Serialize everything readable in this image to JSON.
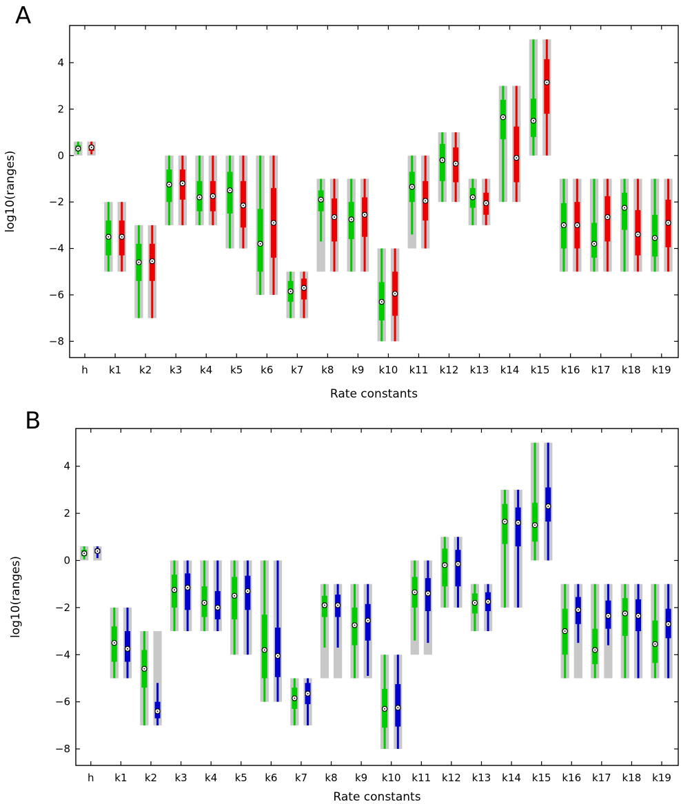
{
  "chart_data": [
    {
      "type": "box",
      "panel_label": "A",
      "xlabel": "Rate constants",
      "ylabel": "log10(ranges)",
      "ylim": [
        -8.7,
        5.6
      ],
      "yticks": [
        -8,
        -6,
        -4,
        -2,
        0,
        2,
        4
      ],
      "categories": [
        "h",
        "k1",
        "k2",
        "k3",
        "k4",
        "k5",
        "k6",
        "k7",
        "k8",
        "k9",
        "k10",
        "k11",
        "k12",
        "k13",
        "k14",
        "k15",
        "k16",
        "k17",
        "k18",
        "k19"
      ],
      "range_color": "#c8c8c8",
      "ranges": [
        [
          0,
          0.6
        ],
        [
          -5,
          -2
        ],
        [
          -7,
          -3
        ],
        [
          -3,
          0
        ],
        [
          -3,
          0
        ],
        [
          -4,
          0
        ],
        [
          -6,
          0
        ],
        [
          -7,
          -5
        ],
        [
          -5,
          -1
        ],
        [
          -5,
          -1
        ],
        [
          -8,
          -4
        ],
        [
          -4,
          0
        ],
        [
          -2,
          1
        ],
        [
          -3,
          -1
        ],
        [
          -2,
          3
        ],
        [
          0,
          5
        ],
        [
          -5,
          -1
        ],
        [
          -5,
          -1
        ],
        [
          -5,
          -1
        ],
        [
          -5,
          -1
        ]
      ],
      "series": [
        {
          "color": "#00cc00",
          "boxes": [
            [
              0.05,
              0.18,
              0.3,
              0.45,
              0.6
            ],
            [
              -5,
              -4.3,
              -3.5,
              -2.8,
              -2
            ],
            [
              -7,
              -5.4,
              -4.6,
              -3.8,
              -3
            ],
            [
              -3,
              -2,
              -1.25,
              -0.6,
              0
            ],
            [
              -3,
              -2.4,
              -1.8,
              -1.1,
              0
            ],
            [
              -4,
              -2.5,
              -1.5,
              -0.7,
              0
            ],
            [
              -6,
              -5,
              -3.8,
              -2.3,
              0
            ],
            [
              -7,
              -6.3,
              -5.85,
              -5.4,
              -5
            ],
            [
              -3.7,
              -2.4,
              -1.9,
              -1.5,
              -1
            ],
            [
              -5,
              -3.6,
              -2.75,
              -2,
              -1
            ],
            [
              -8,
              -7.1,
              -6.3,
              -5.45,
              -4
            ],
            [
              -3.4,
              -2,
              -1.35,
              -0.7,
              0
            ],
            [
              -2,
              -1.1,
              -0.2,
              0.5,
              1
            ],
            [
              -3,
              -2.25,
              -1.8,
              -1.4,
              -1
            ],
            [
              -2,
              0.7,
              1.65,
              2.4,
              3
            ],
            [
              0,
              0.8,
              1.5,
              2.45,
              5
            ],
            [
              -5,
              -4,
              -3,
              -2.05,
              -1
            ],
            [
              -5,
              -4.4,
              -3.8,
              -2.9,
              -1
            ],
            [
              -5,
              -3.2,
              -2.25,
              -1.6,
              -1
            ],
            [
              -5,
              -4.35,
              -3.55,
              -2.55,
              -1
            ]
          ]
        },
        {
          "color": "#ee0000",
          "boxes": [
            [
              0.05,
              0.2,
              0.35,
              0.45,
              0.6
            ],
            [
              -5,
              -4.3,
              -3.5,
              -2.8,
              -2
            ],
            [
              -7,
              -5.4,
              -4.55,
              -3.8,
              -3
            ],
            [
              -3,
              -1.9,
              -1.2,
              -0.6,
              0
            ],
            [
              -3,
              -2.4,
              -1.75,
              -1.1,
              0
            ],
            [
              -4,
              -3.1,
              -2.15,
              -1.1,
              0
            ],
            [
              -6,
              -4.4,
              -2.9,
              -1.4,
              0
            ],
            [
              -7,
              -6.2,
              -5.7,
              -5.3,
              -5
            ],
            [
              -5,
              -3.7,
              -2.65,
              -1.85,
              -1
            ],
            [
              -5,
              -3.5,
              -2.55,
              -1.8,
              -1
            ],
            [
              -8,
              -6.9,
              -5.95,
              -5,
              -4
            ],
            [
              -4,
              -2.8,
              -1.95,
              -1.1,
              0
            ],
            [
              -2,
              -1.15,
              -0.35,
              0.35,
              1
            ],
            [
              -3,
              -2.55,
              -2.05,
              -1.6,
              -1
            ],
            [
              -2,
              -1.15,
              -0.1,
              1.25,
              3
            ],
            [
              0,
              1.8,
              3.15,
              4.15,
              5
            ],
            [
              -5,
              -4,
              -3,
              -2,
              -1
            ],
            [
              -5,
              -3.7,
              -2.65,
              -1.75,
              -1
            ],
            [
              -5,
              -4.3,
              -3.4,
              -2.35,
              -1
            ],
            [
              -5,
              -3.95,
              -2.9,
              -1.9,
              -1
            ]
          ]
        }
      ]
    },
    {
      "type": "box",
      "panel_label": "B",
      "xlabel": "Rate constants",
      "ylabel": "log10(ranges)",
      "ylim": [
        -8.7,
        5.6
      ],
      "yticks": [
        -8,
        -6,
        -4,
        -2,
        0,
        2,
        4
      ],
      "categories": [
        "h",
        "k1",
        "k2",
        "k3",
        "k4",
        "k5",
        "k6",
        "k7",
        "k8",
        "k9",
        "k10",
        "k11",
        "k12",
        "k13",
        "k14",
        "k15",
        "k16",
        "k17",
        "k18",
        "k19"
      ],
      "range_color": "#c8c8c8",
      "ranges": [
        [
          0,
          0.6
        ],
        [
          -5,
          -2
        ],
        [
          -7,
          -3
        ],
        [
          -3,
          0
        ],
        [
          -3,
          0
        ],
        [
          -4,
          0
        ],
        [
          -6,
          0
        ],
        [
          -7,
          -5
        ],
        [
          -5,
          -1
        ],
        [
          -5,
          -1
        ],
        [
          -8,
          -4
        ],
        [
          -4,
          0
        ],
        [
          -2,
          1
        ],
        [
          -3,
          -1
        ],
        [
          -2,
          3
        ],
        [
          0,
          5
        ],
        [
          -5,
          -1
        ],
        [
          -5,
          -1
        ],
        [
          -5,
          -1
        ],
        [
          -5,
          -1
        ]
      ],
      "series": [
        {
          "color": "#00cc00",
          "boxes": [
            [
              0.05,
              0.18,
              0.3,
              0.45,
              0.6
            ],
            [
              -5,
              -4.3,
              -3.5,
              -2.8,
              -2
            ],
            [
              -7,
              -5.4,
              -4.6,
              -3.8,
              -3
            ],
            [
              -3,
              -2,
              -1.25,
              -0.6,
              0
            ],
            [
              -3,
              -2.4,
              -1.8,
              -1.1,
              0
            ],
            [
              -4,
              -2.5,
              -1.5,
              -0.7,
              0
            ],
            [
              -6,
              -5,
              -3.8,
              -2.3,
              0
            ],
            [
              -7,
              -6.3,
              -5.85,
              -5.4,
              -5
            ],
            [
              -3.7,
              -2.4,
              -1.9,
              -1.5,
              -1
            ],
            [
              -5,
              -3.6,
              -2.75,
              -2,
              -1
            ],
            [
              -8,
              -7.1,
              -6.3,
              -5.45,
              -4
            ],
            [
              -3.4,
              -2,
              -1.35,
              -0.7,
              0
            ],
            [
              -2,
              -1.1,
              -0.2,
              0.5,
              1
            ],
            [
              -3,
              -2.25,
              -1.8,
              -1.4,
              -1
            ],
            [
              -2,
              0.7,
              1.65,
              2.4,
              3
            ],
            [
              0,
              0.8,
              1.5,
              2.45,
              5
            ],
            [
              -5,
              -4,
              -3,
              -2.05,
              -1
            ],
            [
              -5,
              -4.4,
              -3.8,
              -2.9,
              -1
            ],
            [
              -5,
              -3.2,
              -2.25,
              -1.6,
              -1
            ],
            [
              -5,
              -4.35,
              -3.55,
              -2.55,
              -1
            ]
          ]
        },
        {
          "color": "#0000cc",
          "boxes": [
            [
              0.1,
              0.3,
              0.4,
              0.5,
              0.6
            ],
            [
              -5,
              -4.3,
              -3.75,
              -3,
              -2
            ],
            [
              -7,
              -6.7,
              -6.4,
              -6,
              -5.2
            ],
            [
              -3,
              -2.1,
              -1.15,
              -0.55,
              0
            ],
            [
              -3,
              -2.5,
              -2,
              -1.3,
              0
            ],
            [
              -4,
              -2.1,
              -1.3,
              -0.65,
              0
            ],
            [
              -6,
              -4.95,
              -4.05,
              -2.85,
              0
            ],
            [
              -7,
              -6.1,
              -5.65,
              -5.2,
              -5
            ],
            [
              -3.7,
              -2.4,
              -1.9,
              -1.45,
              -1
            ],
            [
              -4.9,
              -3.4,
              -2.55,
              -1.85,
              -1
            ],
            [
              -8,
              -7.05,
              -6.25,
              -5.25,
              -4
            ],
            [
              -3.5,
              -2.15,
              -1.4,
              -0.75,
              0
            ],
            [
              -2,
              -1.1,
              -0.15,
              0.45,
              1
            ],
            [
              -3,
              -2.15,
              -1.75,
              -1.35,
              -1
            ],
            [
              -2,
              0.6,
              1.6,
              2.25,
              3
            ],
            [
              0,
              1.65,
              2.3,
              3.1,
              5
            ],
            [
              -3.5,
              -2.7,
              -2.1,
              -1.55,
              -1
            ],
            [
              -3.6,
              -2.9,
              -2.35,
              -1.7,
              -1
            ],
            [
              -5,
              -3,
              -2.35,
              -1.65,
              -1
            ],
            [
              -5,
              -3.3,
              -2.7,
              -2.05,
              -1
            ]
          ]
        }
      ]
    }
  ]
}
